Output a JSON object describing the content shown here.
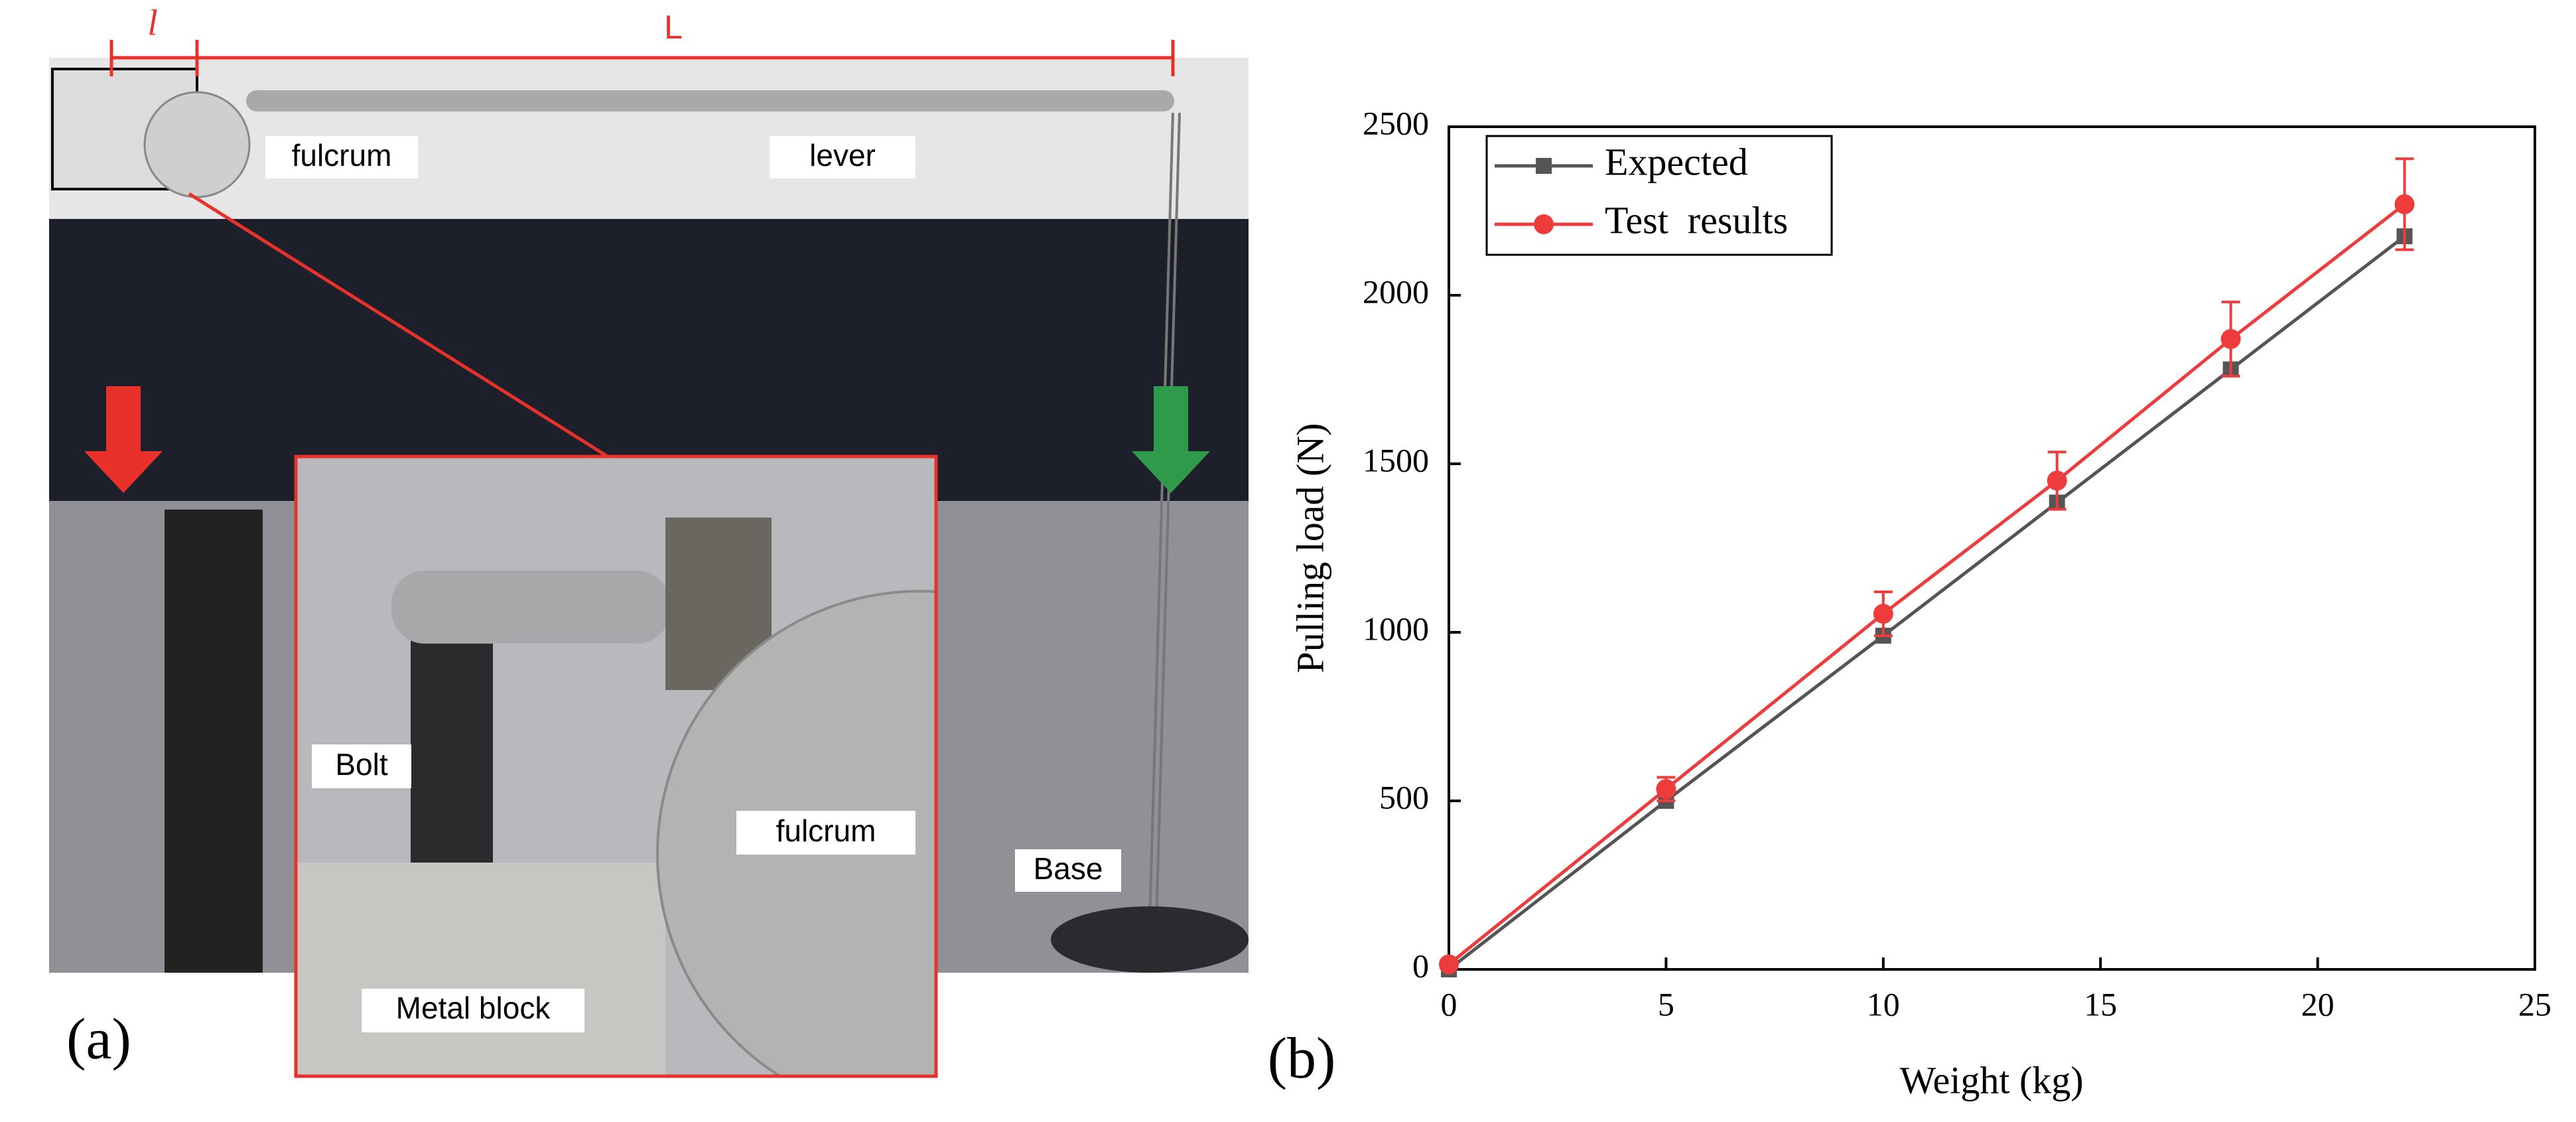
{
  "panel_a": {
    "label": "(a)",
    "dim_short": "l",
    "dim_long": "L",
    "fulcrum": "fulcrum",
    "lever": "lever",
    "bolt": "Bolt",
    "fulcrum_inset": "fulcrum",
    "metal_block": "Metal block",
    "base": "Base"
  },
  "chart_data": {
    "type": "line",
    "panel_label": "(b)",
    "x_label": "Weight (kg)",
    "y_label": "Pulling load (N)",
    "x": [
      0,
      5,
      10,
      14,
      18,
      22
    ],
    "series": [
      {
        "name": "Expected",
        "color": "#555555",
        "marker": "square",
        "values": [
          0,
          500,
          990,
          1385,
          1780,
          2175
        ]
      },
      {
        "name": "Test  results",
        "color": "#ee3b3b",
        "marker": "circle",
        "values": [
          15,
          535,
          1055,
          1450,
          1870,
          2270
        ],
        "errors": [
          10,
          35,
          65,
          85,
          110,
          135
        ]
      }
    ],
    "xlim": [
      0,
      25
    ],
    "xticks": [
      0,
      5,
      10,
      15,
      20,
      25
    ],
    "ylim": [
      0,
      2500
    ],
    "yticks": [
      0,
      500,
      1000,
      1500,
      2000,
      2500
    ],
    "legend": "upper left"
  }
}
